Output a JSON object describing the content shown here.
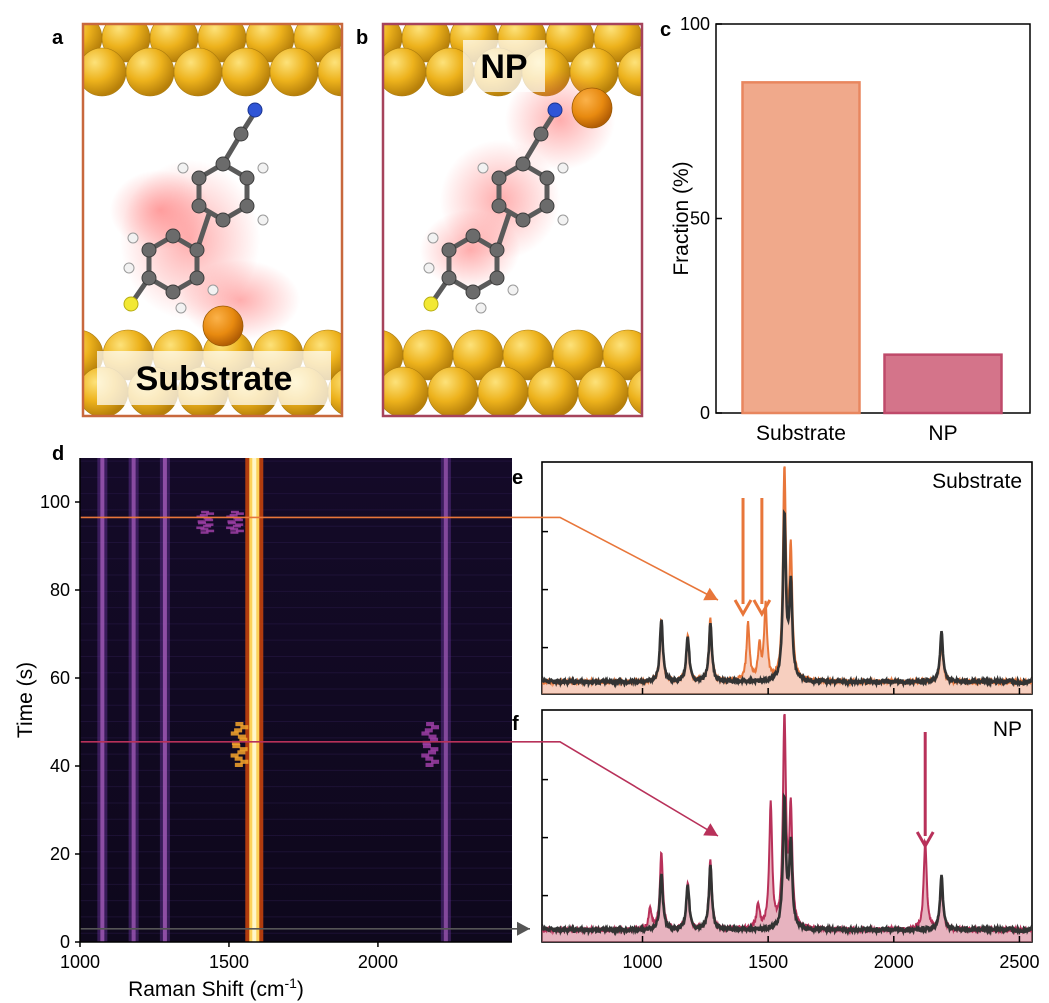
{
  "panel_labels": {
    "a": "a",
    "b": "b",
    "c": "c",
    "d": "d",
    "e": "e",
    "f": "f"
  },
  "panel_a": {
    "tag": "Substrate"
  },
  "panel_b": {
    "tag": "NP"
  },
  "colors": {
    "substrate": "#e8763a",
    "substrate_fill": "#f0a88a",
    "np": "#b8315a",
    "np_fill": "#d4748a",
    "reference": "#333333",
    "frame_a": "#c8683d",
    "frame_b": "#a6435b",
    "gold": "#e7a513",
    "gold_light": "#fcd24a"
  },
  "chart_data": [
    {
      "panel": "c",
      "type": "bar",
      "categories": [
        "Substrate",
        "NP"
      ],
      "values": [
        85,
        15
      ],
      "ylabel": "Fraction (%)",
      "ylim": [
        0,
        100
      ],
      "yticks": [
        "0",
        "50",
        "100"
      ],
      "colors": [
        "#f0a98b",
        "#d4748a"
      ],
      "edge_colors": [
        "#e8865e",
        "#bf4a6a"
      ]
    },
    {
      "panel": "d",
      "type": "heatmap",
      "xlabel": "Raman Shift (cm",
      "xlabel_sup": "-1",
      "xlabel_end": ")",
      "ylabel": "Time (s)",
      "xlim": [
        1000,
        2450
      ],
      "ylim": [
        0,
        110
      ],
      "xticks": [
        "1000",
        "1500",
        "2000"
      ],
      "yticks": [
        "0",
        "20",
        "40",
        "60",
        "80",
        "100"
      ],
      "constant_bands": [
        {
          "x": 1075,
          "intensity": 0.6
        },
        {
          "x": 1180,
          "intensity": 0.55
        },
        {
          "x": 1285,
          "intensity": 0.6
        },
        {
          "x": 1585,
          "intensity": 1.0
        },
        {
          "x": 2228,
          "intensity": 0.5
        }
      ],
      "transient_events": [
        {
          "x": 1535,
          "t_start": 40,
          "t_end": 50,
          "intensity": 0.85
        },
        {
          "x": 2175,
          "t_start": 40,
          "t_end": 50,
          "intensity": 0.6
        },
        {
          "x": 1420,
          "t_start": 93,
          "t_end": 98,
          "intensity": 0.5
        },
        {
          "x": 1520,
          "t_start": 93,
          "t_end": 98,
          "intensity": 0.55
        }
      ],
      "markers": [
        {
          "time": 96.5,
          "color": "#e8763a",
          "target": "e"
        },
        {
          "time": 45.5,
          "color": "#b8315a",
          "target": "f"
        },
        {
          "time": 3.0,
          "color": "#555555",
          "target": "f-baseline"
        }
      ]
    },
    {
      "panel": "e",
      "type": "line",
      "label": "Substrate",
      "xlim": [
        600,
        2550
      ],
      "series": [
        {
          "peaks": [
            [
              1075,
              0.3
            ],
            [
              1180,
              0.22
            ],
            [
              1270,
              0.3
            ],
            [
              1420,
              0.27
            ],
            [
              1465,
              0.16
            ],
            [
              1490,
              0.35
            ],
            [
              1565,
              1.0
            ],
            [
              1590,
              0.6
            ],
            [
              2190,
              0.2
            ]
          ]
        },
        {
          "peaks": [
            [
              1075,
              0.3
            ],
            [
              1180,
              0.22
            ],
            [
              1270,
              0.27
            ],
            [
              1565,
              0.78
            ],
            [
              1590,
              0.45
            ],
            [
              2190,
              0.24
            ]
          ]
        }
      ],
      "arrows_x": [
        1400,
        1475
      ]
    },
    {
      "panel": "f",
      "type": "line",
      "label": "NP",
      "xticks": [
        "1000",
        "1500",
        "2000",
        "2500"
      ],
      "xlim": [
        600,
        2550
      ],
      "series": [
        {
          "peaks": [
            [
              1030,
              0.1
            ],
            [
              1075,
              0.37
            ],
            [
              1180,
              0.22
            ],
            [
              1270,
              0.33
            ],
            [
              1460,
              0.12
            ],
            [
              1510,
              0.59
            ],
            [
              1565,
              1.0
            ],
            [
              1590,
              0.55
            ],
            [
              2125,
              0.42
            ],
            [
              2190,
              0.22
            ]
          ]
        },
        {
          "peaks": [
            [
              1075,
              0.27
            ],
            [
              1180,
              0.22
            ],
            [
              1270,
              0.3
            ],
            [
              1565,
              0.61
            ],
            [
              1590,
              0.4
            ],
            [
              2190,
              0.26
            ]
          ]
        }
      ],
      "arrows_x": [
        2125
      ]
    }
  ]
}
